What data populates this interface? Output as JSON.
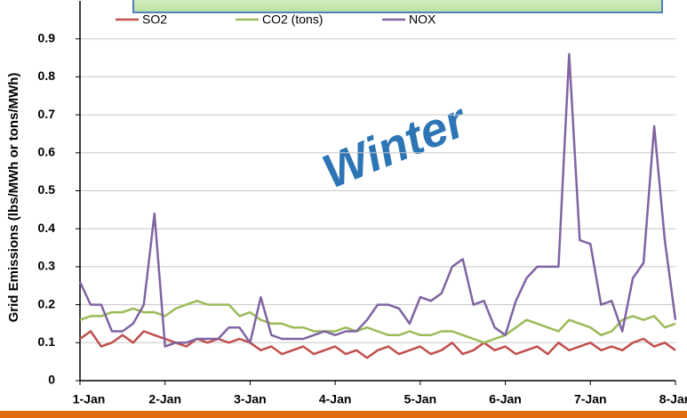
{
  "chart_data": {
    "type": "line",
    "y_label": "Grid Emissions (lbs/MWh or tons/MWh)",
    "annotation": "Winter",
    "xlim": [
      0,
      7
    ],
    "xticks": [
      {
        "value": 0,
        "label": "1-Jan"
      },
      {
        "value": 1,
        "label": "2-Jan"
      },
      {
        "value": 2,
        "label": "3-Jan"
      },
      {
        "value": 3,
        "label": "4-Jan"
      },
      {
        "value": 4,
        "label": "5-Jan"
      },
      {
        "value": 5,
        "label": "6-Jan"
      },
      {
        "value": 6,
        "label": "7-Jan"
      },
      {
        "value": 7,
        "label": "8-Jan"
      }
    ],
    "ylim": [
      0,
      1
    ],
    "yticks": [
      0,
      0.1,
      0.2,
      0.3,
      0.4,
      0.5,
      0.6,
      0.7,
      0.8,
      0.9
    ],
    "grid": true,
    "x": [
      0,
      0.125,
      0.25,
      0.375,
      0.5,
      0.625,
      0.75,
      0.875,
      1,
      1.125,
      1.25,
      1.375,
      1.5,
      1.625,
      1.75,
      1.875,
      2,
      2.125,
      2.25,
      2.375,
      2.5,
      2.625,
      2.75,
      2.875,
      3,
      3.125,
      3.25,
      3.375,
      3.5,
      3.625,
      3.75,
      3.875,
      4,
      4.125,
      4.25,
      4.375,
      4.5,
      4.625,
      4.75,
      4.875,
      5,
      5.125,
      5.25,
      5.375,
      5.5,
      5.625,
      5.75,
      5.875,
      6,
      6.125,
      6.25,
      6.375,
      6.5,
      6.625,
      6.75,
      6.875,
      7
    ],
    "series": [
      {
        "name": "SO2",
        "color": "#c0504d",
        "values": [
          0.11,
          0.13,
          0.09,
          0.1,
          0.12,
          0.1,
          0.13,
          0.12,
          0.11,
          0.1,
          0.09,
          0.11,
          0.1,
          0.11,
          0.1,
          0.11,
          0.1,
          0.08,
          0.09,
          0.07,
          0.08,
          0.09,
          0.07,
          0.08,
          0.09,
          0.07,
          0.08,
          0.06,
          0.08,
          0.09,
          0.07,
          0.08,
          0.09,
          0.07,
          0.08,
          0.1,
          0.07,
          0.08,
          0.1,
          0.08,
          0.09,
          0.07,
          0.08,
          0.09,
          0.07,
          0.1,
          0.08,
          0.09,
          0.1,
          0.08,
          0.09,
          0.08,
          0.1,
          0.11,
          0.09,
          0.1,
          0.08
        ]
      },
      {
        "name": "CO2 (tons)",
        "color": "#9bbb59",
        "values": [
          0.16,
          0.17,
          0.17,
          0.18,
          0.18,
          0.19,
          0.18,
          0.18,
          0.17,
          0.19,
          0.2,
          0.21,
          0.2,
          0.2,
          0.2,
          0.17,
          0.18,
          0.16,
          0.15,
          0.15,
          0.14,
          0.14,
          0.13,
          0.13,
          0.13,
          0.14,
          0.13,
          0.14,
          0.13,
          0.12,
          0.12,
          0.13,
          0.12,
          0.12,
          0.13,
          0.13,
          0.12,
          0.11,
          0.1,
          0.11,
          0.12,
          0.14,
          0.16,
          0.15,
          0.14,
          0.13,
          0.16,
          0.15,
          0.14,
          0.12,
          0.13,
          0.16,
          0.17,
          0.16,
          0.17,
          0.14,
          0.15
        ]
      },
      {
        "name": "NOX",
        "color": "#8064a2",
        "values": [
          0.26,
          0.2,
          0.2,
          0.13,
          0.13,
          0.15,
          0.2,
          0.44,
          0.09,
          0.1,
          0.1,
          0.11,
          0.11,
          0.11,
          0.14,
          0.14,
          0.1,
          0.22,
          0.12,
          0.11,
          0.11,
          0.11,
          0.12,
          0.13,
          0.12,
          0.13,
          0.13,
          0.16,
          0.2,
          0.2,
          0.19,
          0.15,
          0.22,
          0.21,
          0.23,
          0.3,
          0.32,
          0.2,
          0.21,
          0.14,
          0.12,
          0.21,
          0.27,
          0.3,
          0.3,
          0.3,
          0.86,
          0.37,
          0.36,
          0.2,
          0.21,
          0.13,
          0.27,
          0.31,
          0.67,
          0.37,
          0.16
        ]
      }
    ]
  }
}
